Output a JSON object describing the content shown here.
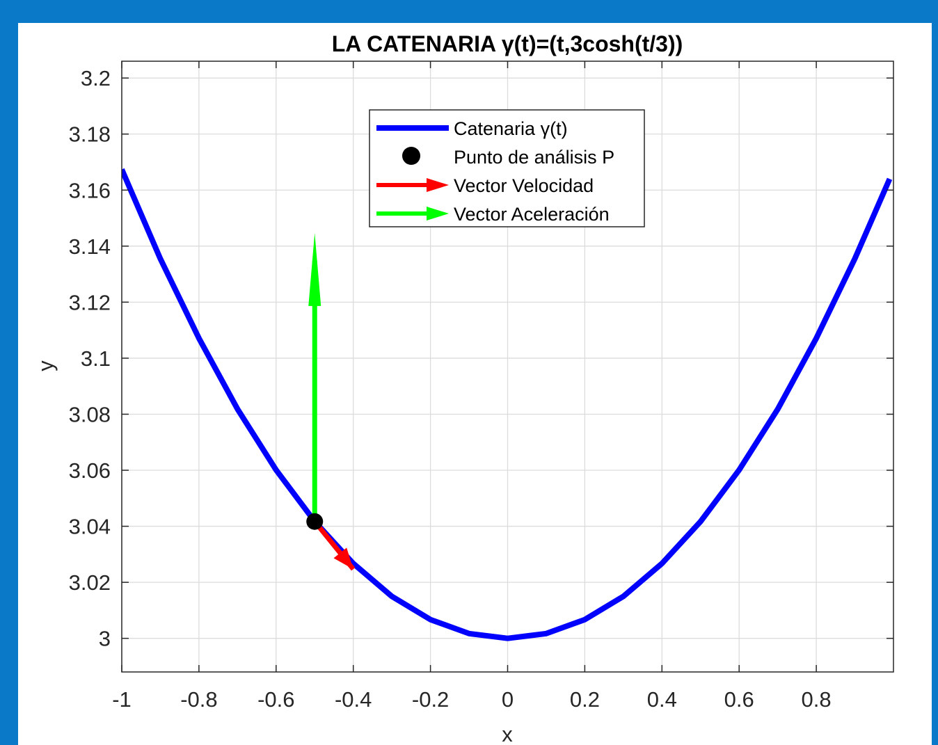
{
  "chart_data": {
    "type": "line",
    "title": "LA CATENARIA γ(t)=(t,3cosh(t/3))",
    "xlabel": "x",
    "ylabel": "y",
    "xlim": [
      -1,
      1
    ],
    "ylim": [
      2.988,
      3.206
    ],
    "x_ticks": [
      -1,
      -0.8,
      -0.6,
      -0.4,
      -0.2,
      0,
      0.2,
      0.4,
      0.6,
      0.8
    ],
    "x_tick_labels": [
      "-1",
      "-0.8",
      "-0.6",
      "-0.4",
      "-0.2",
      "0",
      "0.2",
      "0.4",
      "0.6",
      "0.8"
    ],
    "y_ticks": [
      3,
      3.02,
      3.04,
      3.06,
      3.08,
      3.1,
      3.12,
      3.14,
      3.16,
      3.18,
      3.2
    ],
    "y_tick_labels": [
      "3",
      "3.02",
      "3.04",
      "3.06",
      "3.08",
      "3.1",
      "3.12",
      "3.14",
      "3.16",
      "3.18",
      "3.2"
    ],
    "grid": true,
    "legend_position": "top-center",
    "series": [
      {
        "name": "Catenaria γ(t)",
        "kind": "curve",
        "color": "#0000ff",
        "x": [
          -1,
          -0.9,
          -0.8,
          -0.7,
          -0.6,
          -0.5,
          -0.4,
          -0.3,
          -0.2,
          -0.1,
          0,
          0.1,
          0.2,
          0.3,
          0.4,
          0.5,
          0.6,
          0.7,
          0.8,
          0.9,
          0.99
        ],
        "y": [
          3.1674,
          3.1355,
          3.1071,
          3.0818,
          3.0601,
          3.0417,
          3.0267,
          3.015,
          3.0067,
          3.0017,
          3.0,
          3.0017,
          3.0067,
          3.015,
          3.0267,
          3.0417,
          3.0601,
          3.0818,
          3.1071,
          3.1355,
          3.164
        ]
      },
      {
        "name": "Punto de análisis P",
        "kind": "point",
        "color": "#000000",
        "x": [
          -0.5
        ],
        "y": [
          3.0417
        ]
      },
      {
        "name": "Vector Velocidad",
        "kind": "arrow",
        "color": "#ff0000",
        "x": [
          -0.5,
          -0.4
        ],
        "y": [
          3.0417,
          3.0247
        ]
      },
      {
        "name": "Vector Aceleración",
        "kind": "arrow",
        "color": "#00ff00",
        "x": [
          -0.5,
          -0.5
        ],
        "y": [
          3.0417,
          3.1447
        ]
      }
    ]
  }
}
